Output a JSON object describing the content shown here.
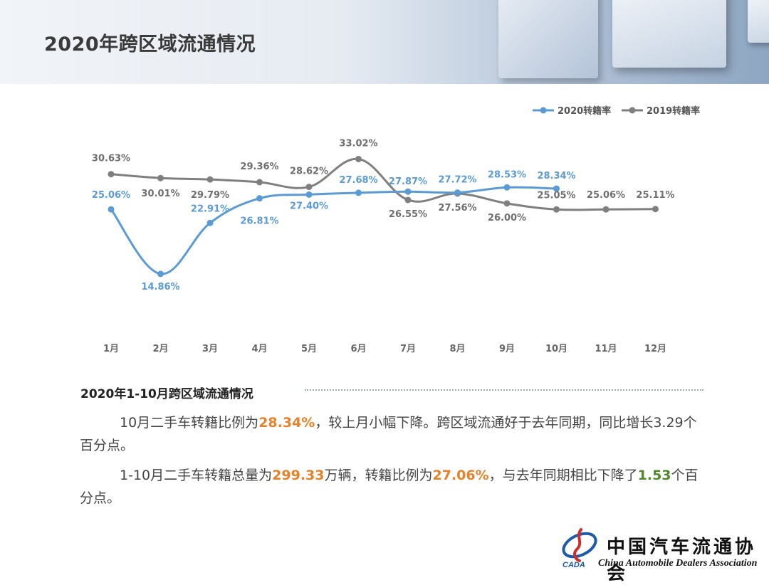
{
  "page": {
    "title": "2020年跨区域流通情况"
  },
  "chart_data": {
    "type": "line",
    "categories": [
      "1月",
      "2月",
      "3月",
      "4月",
      "5月",
      "6月",
      "7月",
      "8月",
      "9月",
      "10月",
      "11月",
      "12月"
    ],
    "series": [
      {
        "name": "2020转籍率",
        "color": "#5b9bd5",
        "values": [
          25.06,
          14.86,
          22.91,
          26.81,
          27.4,
          27.68,
          27.87,
          27.72,
          28.53,
          28.34,
          null,
          null
        ],
        "labels": [
          "25.06%",
          "14.86%",
          "22.91%",
          "26.81%",
          "27.40%",
          "27.68%",
          "27.87%",
          "27.72%",
          "28.53%",
          "28.34%",
          "",
          ""
        ]
      },
      {
        "name": "2019转籍率",
        "color": "#7f7f7f",
        "values": [
          30.63,
          30.01,
          29.79,
          29.36,
          28.62,
          33.02,
          26.55,
          27.56,
          26.0,
          25.05,
          25.06,
          25.11
        ],
        "labels": [
          "30.63%",
          "30.01%",
          "29.79%",
          "29.36%",
          "28.62%",
          "33.02%",
          "26.55%",
          "27.56%",
          "26.00%",
          "25.05%",
          "25.06%",
          "25.11%"
        ]
      }
    ],
    "ylim": [
      10,
      36
    ],
    "grid": false,
    "legend": "top-right"
  },
  "summary": {
    "title": "2020年1-10月跨区域流通情况",
    "p1": {
      "a": "10月二手车转籍比例为",
      "b": "28.34%",
      "c": "，较上月小幅下降。跨区域流通好于去年同期，同比增长3.29个百分点。"
    },
    "p2": {
      "a": "1-10月二手车转籍总量为",
      "b": "299.33",
      "c": "万辆，转籍比例为",
      "d": "27.06%",
      "e": "，与去年同期相比下降了",
      "f": "1.53",
      "g": "个百分点。"
    }
  },
  "logo": {
    "cn": "中国汽车流通协会",
    "en": "China Automobile Dealers Association",
    "abbr": "CADA"
  },
  "colors": {
    "accent_orange": "#e8822a",
    "accent_green": "#4f8a2d",
    "series_2020": "#5b9bd5",
    "series_2019": "#7f7f7f"
  }
}
